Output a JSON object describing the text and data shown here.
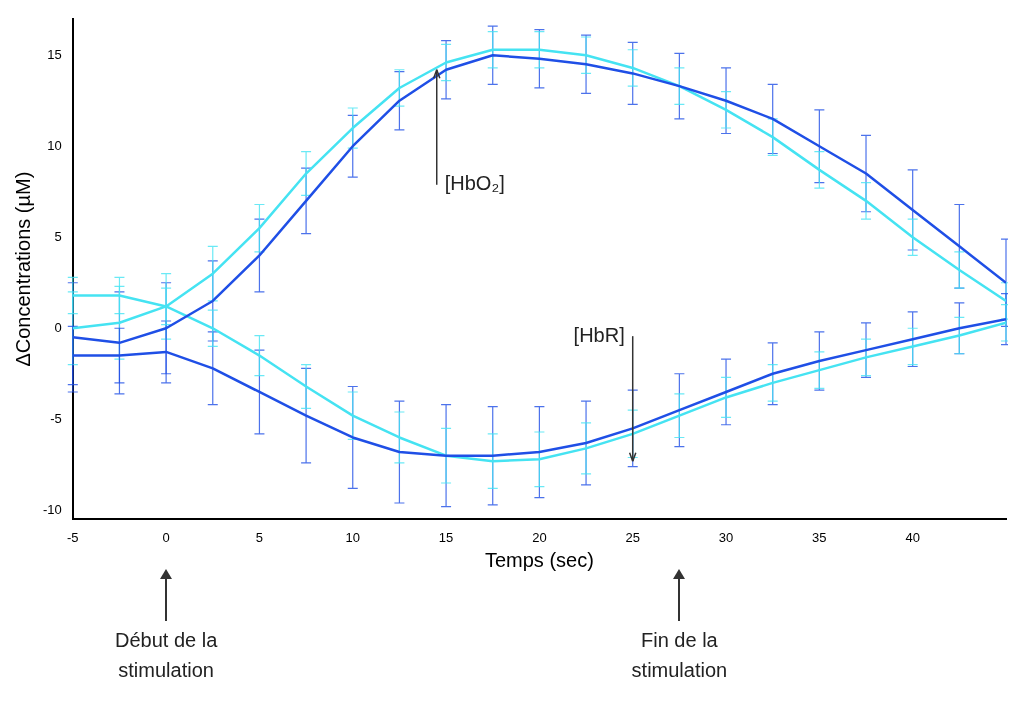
{
  "chart_data": {
    "type": "line",
    "xlabel": "Temps (sec)",
    "ylabel": "ΔConcentrations (µM)",
    "x": [
      -5,
      -2.5,
      0,
      2.5,
      5,
      7.5,
      10,
      12.5,
      15,
      17.5,
      20,
      22.5,
      25,
      27.5,
      30,
      32.5,
      35,
      37.5,
      40,
      42.5,
      45
    ],
    "xlim": [
      -5,
      45
    ],
    "xticks": [
      -5,
      0,
      5,
      10,
      15,
      20,
      25,
      30,
      35,
      40
    ],
    "ylim": [
      -10.5,
      17
    ],
    "yticks": [
      -10,
      -5,
      0,
      5,
      10,
      15
    ],
    "grid": false,
    "legend": false,
    "marker": "none",
    "line_style": "solid",
    "series": [
      {
        "color": "#1f4fe6",
        "values": [
          -0.5,
          -0.8,
          0,
          1.5,
          4,
          7,
          10,
          12.5,
          14.2,
          15,
          14.8,
          14.5,
          14,
          13.3,
          12.5,
          11.5,
          10,
          8.5,
          6.5,
          4.5,
          2.5
        ],
        "errors": [
          3,
          2.8,
          2.5,
          2.2,
          2,
          1.8,
          1.7,
          1.6,
          1.6,
          1.6,
          1.6,
          1.6,
          1.7,
          1.8,
          1.8,
          1.9,
          2,
          2.1,
          2.2,
          2.3,
          2.4
        ]
      },
      {
        "color": "#45e3f2",
        "values": [
          0,
          0.3,
          1.2,
          3,
          5.5,
          8.5,
          11,
          13.2,
          14.6,
          15.3,
          15.3,
          15,
          14.3,
          13.3,
          12,
          10.5,
          8.7,
          7,
          5,
          3.2,
          1.5
        ],
        "errors": [
          2,
          2,
          1.8,
          1.5,
          1.3,
          1.2,
          1.1,
          1,
          1,
          1,
          1,
          1,
          1,
          1,
          1,
          1,
          1,
          1,
          1,
          1,
          1
        ]
      },
      {
        "color": "#1f4fe6",
        "values": [
          -1.5,
          -1.5,
          -1.3,
          -2.2,
          -3.5,
          -4.8,
          -6,
          -6.8,
          -7,
          -7,
          -6.8,
          -6.3,
          -5.5,
          -4.5,
          -3.5,
          -2.5,
          -1.8,
          -1.2,
          -0.6,
          0,
          0.5
        ],
        "errors": [
          1.6,
          1.5,
          1.7,
          2,
          2.3,
          2.6,
          2.8,
          2.8,
          2.8,
          2.7,
          2.5,
          2.3,
          2.1,
          2,
          1.8,
          1.7,
          1.6,
          1.5,
          1.5,
          1.4,
          1.4
        ]
      },
      {
        "color": "#45e3f2",
        "values": [
          1.8,
          1.8,
          1.2,
          0,
          -1.5,
          -3.2,
          -4.8,
          -6,
          -7,
          -7.3,
          -7.2,
          -6.6,
          -5.8,
          -4.8,
          -3.8,
          -3,
          -2.3,
          -1.6,
          -1,
          -0.4,
          0.3
        ],
        "errors": [
          1,
          1,
          1,
          1,
          1.1,
          1.2,
          1.3,
          1.4,
          1.5,
          1.5,
          1.5,
          1.4,
          1.3,
          1.2,
          1.1,
          1,
          1,
          1,
          1,
          1,
          1
        ]
      }
    ],
    "annotations": [
      {
        "text": "[HbO₂]",
        "x": 14.5,
        "y": 14.2
      },
      {
        "text": "[HbR]",
        "x": 25,
        "y": -7.3
      },
      "Début de la stimulation",
      "Fin de la stimulation"
    ]
  }
}
